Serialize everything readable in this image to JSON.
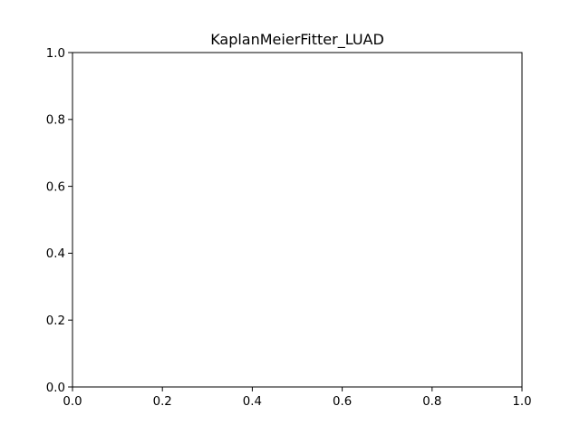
{
  "chart_data": {
    "type": "line",
    "title": "KaplanMeierFitter_LUAD",
    "xlabel": "",
    "ylabel": "",
    "xlim": [
      0.0,
      1.0
    ],
    "ylim": [
      0.0,
      1.0
    ],
    "xticks": [
      "0.0",
      "0.2",
      "0.4",
      "0.6",
      "0.8",
      "1.0"
    ],
    "yticks": [
      "0.0",
      "0.2",
      "0.4",
      "0.6",
      "0.8",
      "1.0"
    ],
    "series": [],
    "grid": false,
    "legend": "none"
  },
  "colors": {
    "axes": "#000000",
    "background": "#ffffff"
  }
}
